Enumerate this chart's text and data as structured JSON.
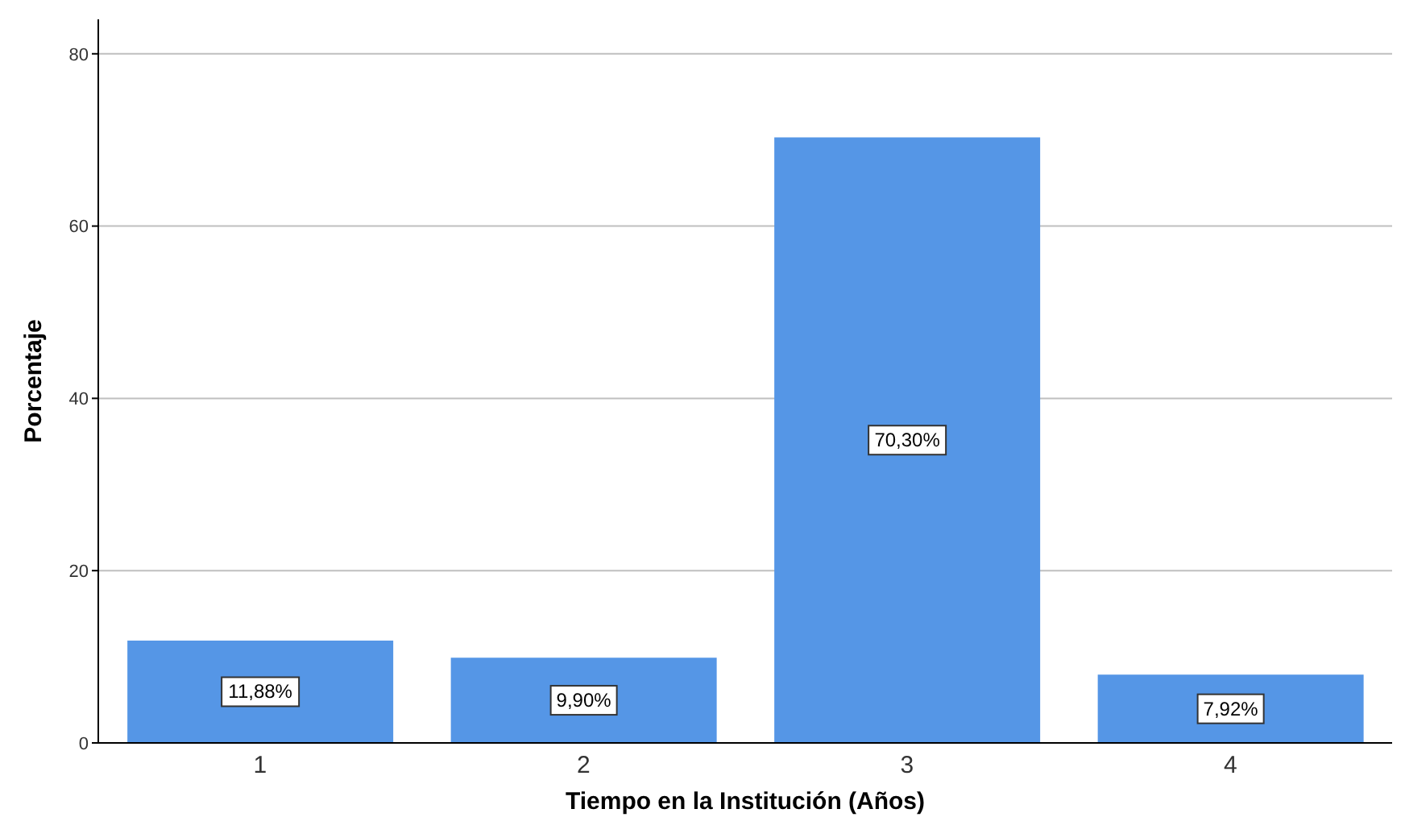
{
  "chart_data": {
    "type": "bar",
    "xlabel": "Tiempo en la Institución (Años)",
    "ylabel": "Porcentaje",
    "categories": [
      "1",
      "2",
      "3",
      "4"
    ],
    "values": [
      11.88,
      9.9,
      70.3,
      7.92
    ],
    "value_labels": [
      "11,88%",
      "9,90%",
      "70,30%",
      "7,92%"
    ],
    "color": "#5596e6",
    "ylim": [
      0,
      84
    ],
    "yticks": [
      0,
      20,
      40,
      60,
      80
    ],
    "grid": "y",
    "legend": false
  }
}
